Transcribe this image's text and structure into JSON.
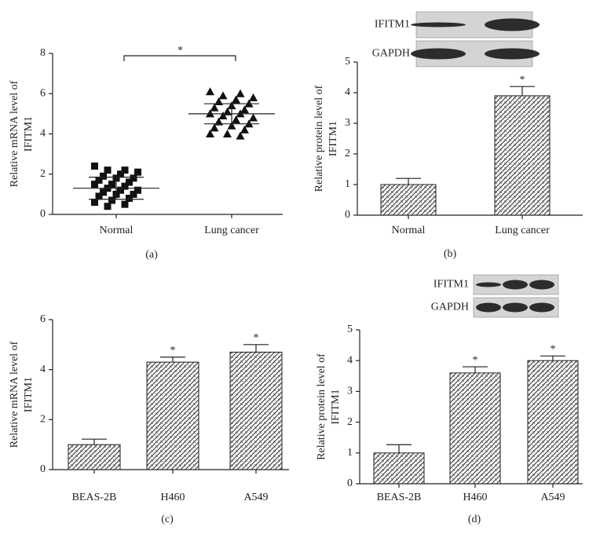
{
  "chart_data": [
    {
      "type": "dotplot",
      "panel_label": "(a)",
      "y_label": [
        "Relative mRNA level of",
        "IFITM1"
      ],
      "categories": [
        "Normal",
        "Lung cancer"
      ],
      "points": [
        [
          2.4,
          2.2,
          2.2,
          2.1,
          2.0,
          1.9,
          1.8,
          1.8,
          1.7,
          1.6,
          1.5,
          1.5,
          1.4,
          1.3,
          1.2,
          1.2,
          1.1,
          1.0,
          1.0,
          0.9,
          0.8,
          0.7,
          0.6,
          0.5,
          0.4
        ],
        [
          6.1,
          6.0,
          5.9,
          5.8,
          5.7,
          5.6,
          5.5,
          5.4,
          5.3,
          5.2,
          5.1,
          5.0,
          5.0,
          4.9,
          4.8,
          4.7,
          4.6,
          4.5,
          4.4,
          4.3,
          4.2,
          4.0,
          4.0,
          3.9
        ]
      ],
      "means": [
        1.3,
        5.0
      ],
      "sd": [
        0.55,
        0.5
      ],
      "significance": "*",
      "ylim": [
        0,
        8
      ],
      "yticks": [
        0,
        2,
        4,
        6,
        8
      ]
    },
    {
      "type": "bar",
      "panel_label": "(b)",
      "y_label": [
        "Relative protein level of",
        "IFITM1"
      ],
      "blot": {
        "labels": [
          "IFITM1",
          "GAPDH"
        ]
      },
      "categories": [
        "Normal",
        "Lung cancer"
      ],
      "values": [
        1.0,
        3.9
      ],
      "errors": [
        0.2,
        0.3
      ],
      "significance": [
        null,
        "*"
      ],
      "ylim": [
        0,
        5
      ],
      "yticks": [
        0,
        1,
        2,
        3,
        4,
        5
      ]
    },
    {
      "type": "bar",
      "panel_label": "(c)",
      "y_label": [
        "Relative mRNA level of",
        "IFITM1"
      ],
      "categories": [
        "BEAS-2B",
        "H460",
        "A549"
      ],
      "values": [
        1.0,
        4.3,
        4.7
      ],
      "errors": [
        0.22,
        0.2,
        0.3
      ],
      "significance": [
        null,
        "*",
        "*"
      ],
      "ylim": [
        0,
        6
      ],
      "yticks": [
        0,
        2,
        4,
        6
      ]
    },
    {
      "type": "bar",
      "panel_label": "(d)",
      "y_label": [
        "Relative protein level of",
        "IFITM1"
      ],
      "blot": {
        "labels": [
          "IFITM1",
          "GAPDH"
        ]
      },
      "categories": [
        "BEAS-2B",
        "H460",
        "A549"
      ],
      "values": [
        1.0,
        3.6,
        4.0
      ],
      "errors": [
        0.27,
        0.2,
        0.15
      ],
      "significance": [
        null,
        "*",
        "*"
      ],
      "ylim": [
        0,
        5
      ],
      "yticks": [
        0,
        1,
        2,
        3,
        4,
        5
      ]
    }
  ]
}
